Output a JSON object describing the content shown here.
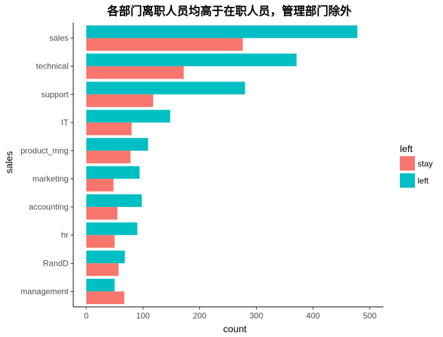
{
  "chart_data": {
    "type": "bar",
    "orientation": "horizontal",
    "title": "各部门离职人员均高于在职人员，管理部门除外",
    "xlabel": "count",
    "ylabel": "sales",
    "xlim": [
      0,
      500
    ],
    "xticks": [
      0,
      100,
      200,
      300,
      400,
      500
    ],
    "grid": false,
    "legend_title": "left",
    "legend_position": "right",
    "categories": [
      "sales",
      "technical",
      "support",
      "IT",
      "product_mng",
      "marketing",
      "accounting",
      "hr",
      "RandD",
      "management"
    ],
    "series": [
      {
        "name": "left",
        "color": "#00BFC4",
        "values": [
          478,
          371,
          280,
          148,
          109,
          94,
          98,
          90,
          68,
          50
        ]
      },
      {
        "name": "stay",
        "color": "#F8766D",
        "values": [
          276,
          172,
          118,
          80,
          78,
          48,
          55,
          50,
          57,
          67
        ]
      }
    ],
    "legend_order": [
      "stay",
      "left"
    ]
  }
}
